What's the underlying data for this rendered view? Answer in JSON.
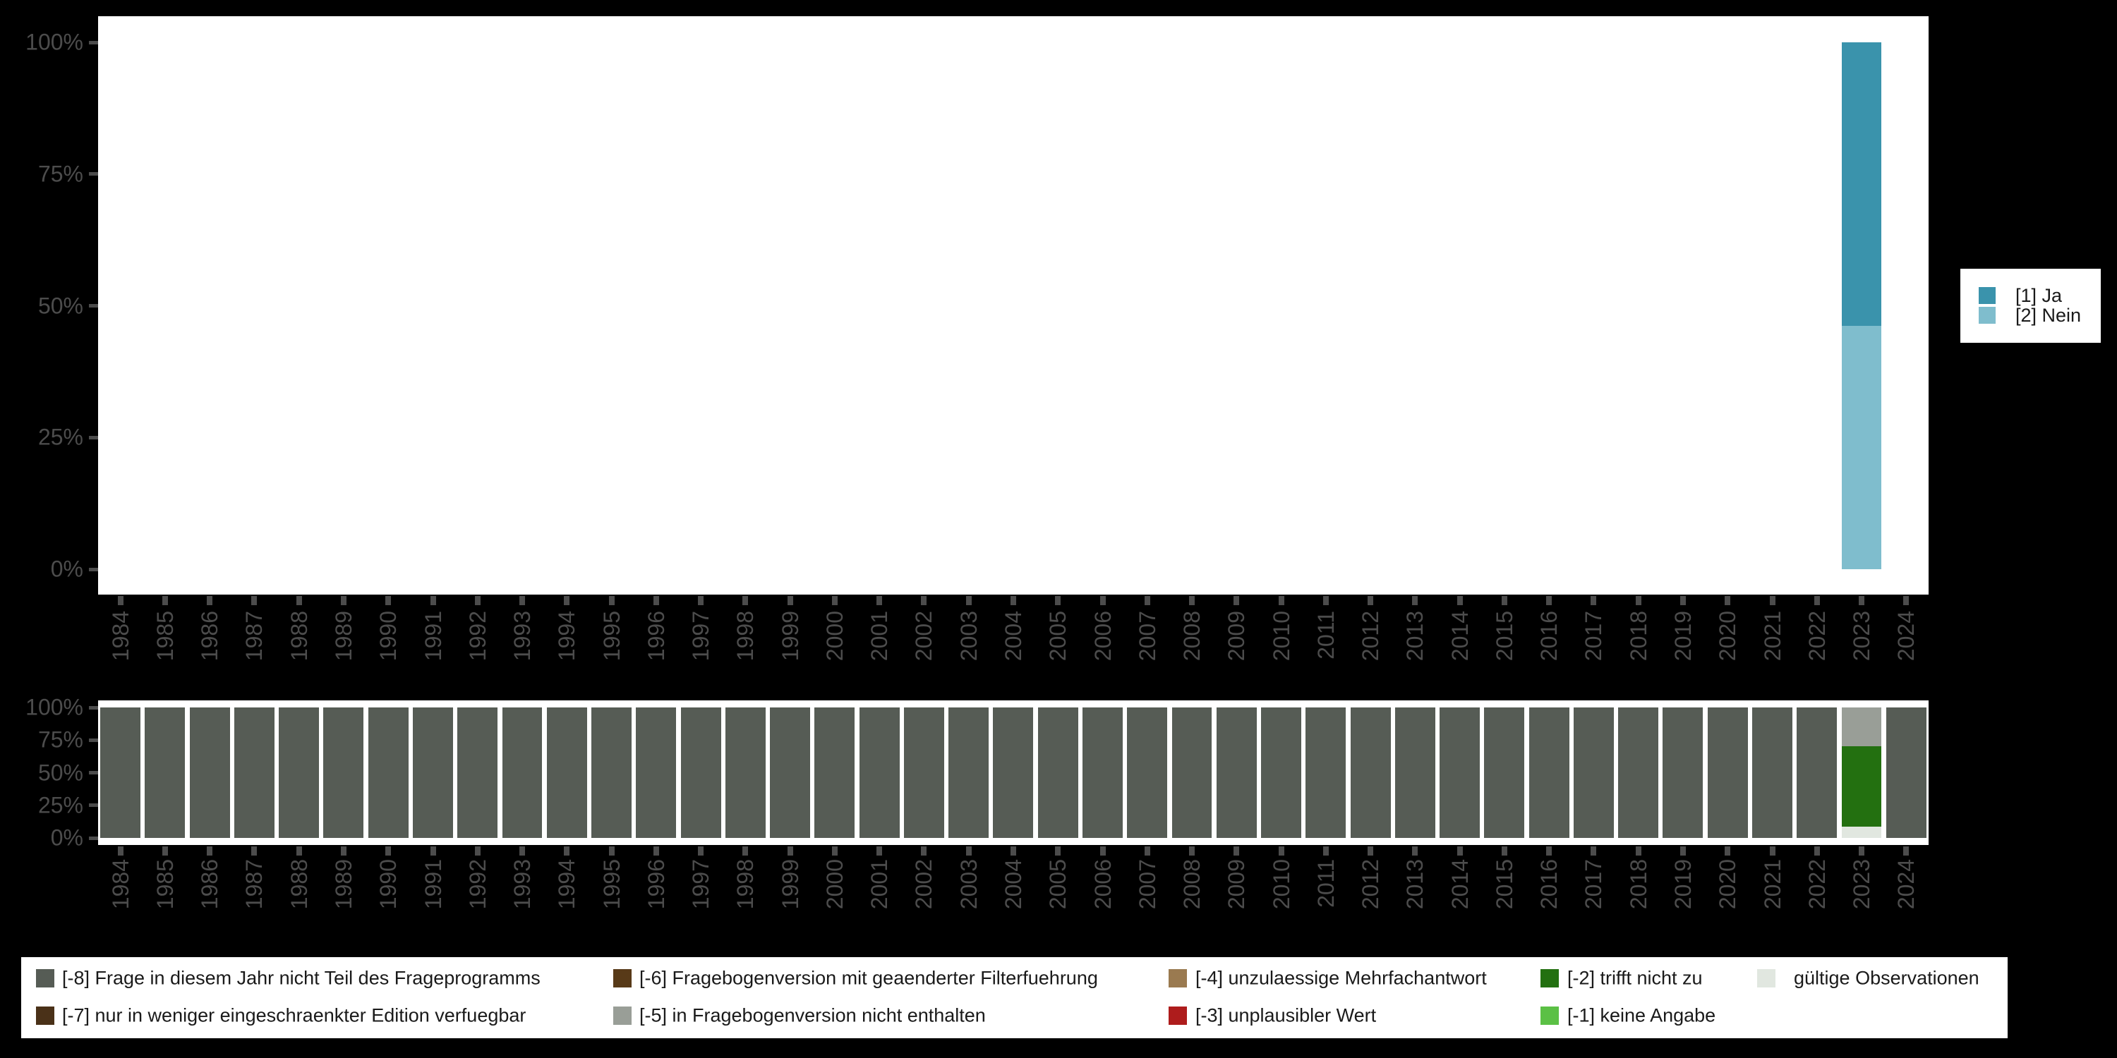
{
  "style": {
    "background": "#000000",
    "plot_background": "#FFFFFF",
    "axis_text_color": "#4C4C4C",
    "legend_text_color": "#1A1A1A",
    "legend_background": "#FFFFFF"
  },
  "chart_data": [
    {
      "type": "bar",
      "stacked": true,
      "panel_label": "values",
      "title": "",
      "xlabel": "",
      "ylabel": "",
      "ylim": [
        0,
        100
      ],
      "grid": false,
      "legend_position": "right",
      "ytick_labels": [
        "100%",
        "75%",
        "50%",
        "25%",
        "0%"
      ],
      "x": [
        "1984",
        "1985",
        "1986",
        "1987",
        "1988",
        "1989",
        "1990",
        "1991",
        "1992",
        "1993",
        "1994",
        "1995",
        "1996",
        "1997",
        "1998",
        "1999",
        "2000",
        "2001",
        "2002",
        "2003",
        "2004",
        "2005",
        "2006",
        "2007",
        "2008",
        "2009",
        "2010",
        "2011",
        "2012",
        "2013",
        "2014",
        "2015",
        "2016",
        "2017",
        "2018",
        "2019",
        "2020",
        "2021",
        "2022",
        "2023",
        "2024"
      ],
      "bar_width_frac": 0.9,
      "stack_order_bottom_to_top": [
        "nein",
        "ja"
      ],
      "series": [
        {
          "key": "ja",
          "name": "[1] Ja",
          "color": "#3A93AC",
          "pct_default": 0,
          "pct_by_year": {
            "2023": 53.8
          }
        },
        {
          "key": "nein",
          "name": "[2] Nein",
          "color": "#7FBDCD",
          "pct_default": 0,
          "pct_by_year": {
            "2023": 46.2
          }
        }
      ]
    },
    {
      "type": "bar",
      "stacked": true,
      "panel_label": "missings",
      "title": "",
      "xlabel": "",
      "ylabel": "",
      "ylim": [
        0,
        100
      ],
      "grid": false,
      "legend_position": "bottom",
      "ytick_labels": [
        "100%",
        "75%",
        "50%",
        "25%",
        "0%"
      ],
      "x": [
        "1984",
        "1985",
        "1986",
        "1987",
        "1988",
        "1989",
        "1990",
        "1991",
        "1992",
        "1993",
        "1994",
        "1995",
        "1996",
        "1997",
        "1998",
        "1999",
        "2000",
        "2001",
        "2002",
        "2003",
        "2004",
        "2005",
        "2006",
        "2007",
        "2008",
        "2009",
        "2010",
        "2011",
        "2012",
        "2013",
        "2014",
        "2015",
        "2016",
        "2017",
        "2018",
        "2019",
        "2020",
        "2021",
        "2022",
        "2023",
        "2024"
      ],
      "bar_width_frac": 0.9,
      "stack_order_bottom_to_top": [
        "valid",
        "m2",
        "m5",
        "m8"
      ],
      "series": [
        {
          "key": "m8",
          "name": "[-8] Frage in diesem Jahr nicht Teil des Frageprogramms",
          "color": "#565C55",
          "pct_default": 100,
          "pct_by_year": {
            "2023": 0
          }
        },
        {
          "key": "m5",
          "name": "[-5] in Fragebogenversion nicht enthalten",
          "color": "#999E97",
          "pct_default": 0,
          "pct_by_year": {
            "2023": 29.7
          }
        },
        {
          "key": "m2",
          "name": "[-2] trifft nicht zu",
          "color": "#237010",
          "pct_default": 0,
          "pct_by_year": {
            "2023": 61.7
          }
        },
        {
          "key": "valid",
          "name": "gültige Observationen",
          "color": "#E1E7E0",
          "pct_default": 0,
          "pct_by_year": {
            "2023": 8.6
          }
        }
      ]
    }
  ],
  "legend_missings": {
    "items": [
      {
        "label": "[-8] Frage in diesem Jahr nicht Teil des Frageprogramms",
        "color": "#565C55",
        "col": 0,
        "row": 0
      },
      {
        "label": "[-7] nur in weniger eingeschraenkter Edition verfuegbar",
        "color": "#4A3118",
        "col": 0,
        "row": 1
      },
      {
        "label": "[-6] Fragebogenversion mit geaenderter Filterfuehrung",
        "color": "#583A18",
        "col": 1,
        "row": 0
      },
      {
        "label": "[-5] in Fragebogenversion nicht enthalten",
        "color": "#999E97",
        "col": 1,
        "row": 1
      },
      {
        "label": "[-4] unzulaessige Mehrfachantwort",
        "color": "#9A7A50",
        "col": 2,
        "row": 0
      },
      {
        "label": "[-3] unplausibler Wert",
        "color": "#AE1C1C",
        "col": 2,
        "row": 1
      },
      {
        "label": "[-2] trifft nicht zu",
        "color": "#237010",
        "col": 3,
        "row": 0
      },
      {
        "label": "[-1] keine Angabe",
        "color": "#5BC045",
        "col": 3,
        "row": 1
      },
      {
        "label": "gültige Observationen",
        "color": "#E1E7E0",
        "col": 4,
        "row": 0
      }
    ]
  }
}
